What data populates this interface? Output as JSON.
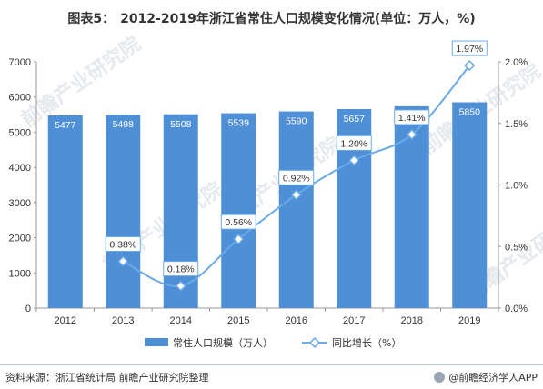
{
  "title": {
    "label": "图表5：",
    "text": "2012-2019年浙江省常住人口规模变化情况(单位：万人，%)"
  },
  "footer": {
    "source": "资料来源：浙江省统计局 前瞻产业研究院整理",
    "brand": "@前瞻经济学人APP"
  },
  "watermark": "前瞻产业研究院",
  "colors": {
    "bar": "#4f8fd6",
    "line": "#6aaae6",
    "label_text_bar": "#ffffff",
    "label_text_line": "#333333"
  },
  "chart_data": {
    "type": "bar",
    "categories": [
      "2012",
      "2013",
      "2014",
      "2015",
      "2016",
      "2017",
      "2018",
      "2019"
    ],
    "series": [
      {
        "name": "常住人口规模（万人）",
        "type": "bar",
        "axis": "left",
        "values": [
          5477,
          5498,
          5508,
          5539,
          5590,
          5657,
          5737,
          5850
        ]
      },
      {
        "name": "同比增长（%）",
        "type": "line",
        "axis": "right",
        "values": [
          null,
          0.38,
          0.18,
          0.56,
          0.92,
          1.2,
          1.41,
          1.97
        ],
        "labels": [
          "",
          "0.38%",
          "0.18%",
          "0.56%",
          "0.92%",
          "1.20%",
          "1.41%",
          "1.97%"
        ]
      }
    ],
    "y_left": {
      "min": 0,
      "max": 7000,
      "ticks": [
        "0",
        "1000",
        "2000",
        "3000",
        "4000",
        "5000",
        "6000",
        "7000"
      ]
    },
    "y_right": {
      "min": 0,
      "max": 2.0,
      "ticks": [
        "0.0%",
        "0.5%",
        "1.0%",
        "1.5%",
        "2.0%"
      ]
    },
    "legend_position": "bottom",
    "grid": false
  }
}
